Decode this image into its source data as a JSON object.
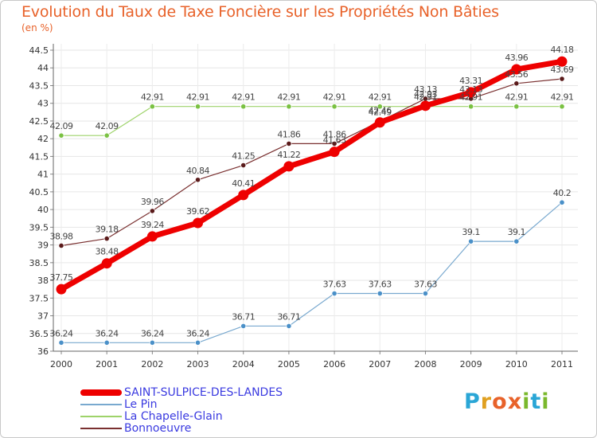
{
  "title": "Evolution du Taux de Taxe Foncière sur les Propriétés Non Bâties",
  "unit_label": "(en %)",
  "brand": {
    "text": "Proxiti",
    "colors": [
      "#2aa6d6",
      "#e0a020",
      "#e8622a",
      "#e8622a",
      "#7ab82c",
      "#2aa6d6",
      "#7ab82c"
    ]
  },
  "chart_data": {
    "type": "line",
    "x": [
      "2000",
      "2001",
      "2002",
      "2003",
      "2004",
      "2005",
      "2006",
      "2007",
      "2008",
      "2009",
      "2010",
      "2011"
    ],
    "ylim": [
      36,
      44.5
    ],
    "yticks": [
      "36",
      "36.5",
      "37",
      "37.5",
      "38",
      "38.5",
      "39",
      "39.5",
      "40",
      "40.5",
      "41",
      "41.5",
      "42",
      "42.5",
      "43",
      "43.5",
      "44",
      "44.5"
    ],
    "grid": true,
    "legend_position": "bottom-left",
    "series": [
      {
        "name": "Le Pin",
        "color": "#79a9cf",
        "marker": "#4a90c8",
        "width": 1.2,
        "values": [
          36.24,
          36.24,
          36.24,
          36.24,
          36.71,
          36.71,
          37.63,
          37.63,
          37.63,
          39.1,
          39.1,
          40.2
        ],
        "labels": [
          "36.24",
          "36.24",
          "36.24",
          "36.24",
          "36.71",
          "36.71",
          "37.63",
          "37.63",
          "37.63",
          "39.1",
          "39.1",
          "40.2"
        ]
      },
      {
        "name": "La Chapelle-Glain",
        "color": "#9ed36a",
        "marker": "#7ac142",
        "width": 1.2,
        "values": [
          42.09,
          42.09,
          42.91,
          42.91,
          42.91,
          42.91,
          42.91,
          42.91,
          42.91,
          42.91,
          42.91,
          42.91
        ],
        "labels": [
          "42.09",
          "42.09",
          "42.91",
          "42.91",
          "42.91",
          "42.91",
          "42.91",
          "42.91",
          "42.91",
          "42.91",
          "42.91",
          "42.91"
        ]
      },
      {
        "name": "Bonnoeuvre",
        "color": "#7a3030",
        "marker": "#5a1a1a",
        "width": 1.2,
        "values": [
          38.98,
          39.18,
          39.96,
          40.84,
          41.25,
          41.86,
          41.86,
          42.49,
          43.13,
          43.13,
          43.56,
          43.69
        ],
        "labels": [
          "38.98",
          "39.18",
          "39.96",
          "40.84",
          "41.25",
          "41.86",
          "41.86",
          "42.49",
          "43.13",
          "43.13",
          "43.56",
          "43.69"
        ]
      },
      {
        "name": "SAINT-SULPICE-DES-LANDES",
        "color": "#ee0000",
        "marker": "#ee0000",
        "width": 7,
        "values": [
          37.75,
          38.48,
          39.24,
          39.62,
          40.41,
          41.22,
          41.63,
          42.46,
          42.93,
          43.31,
          43.96,
          44.18
        ],
        "labels": [
          "37.75",
          "38.48",
          "39.24",
          "39.62",
          "40.41",
          "41.22",
          "41.63",
          "42.46",
          "42.93",
          "43.31",
          "43.96",
          "44.18"
        ]
      }
    ],
    "legend_order": [
      "SAINT-SULPICE-DES-LANDES",
      "Le Pin",
      "La Chapelle-Glain",
      "Bonnoeuvre"
    ]
  }
}
